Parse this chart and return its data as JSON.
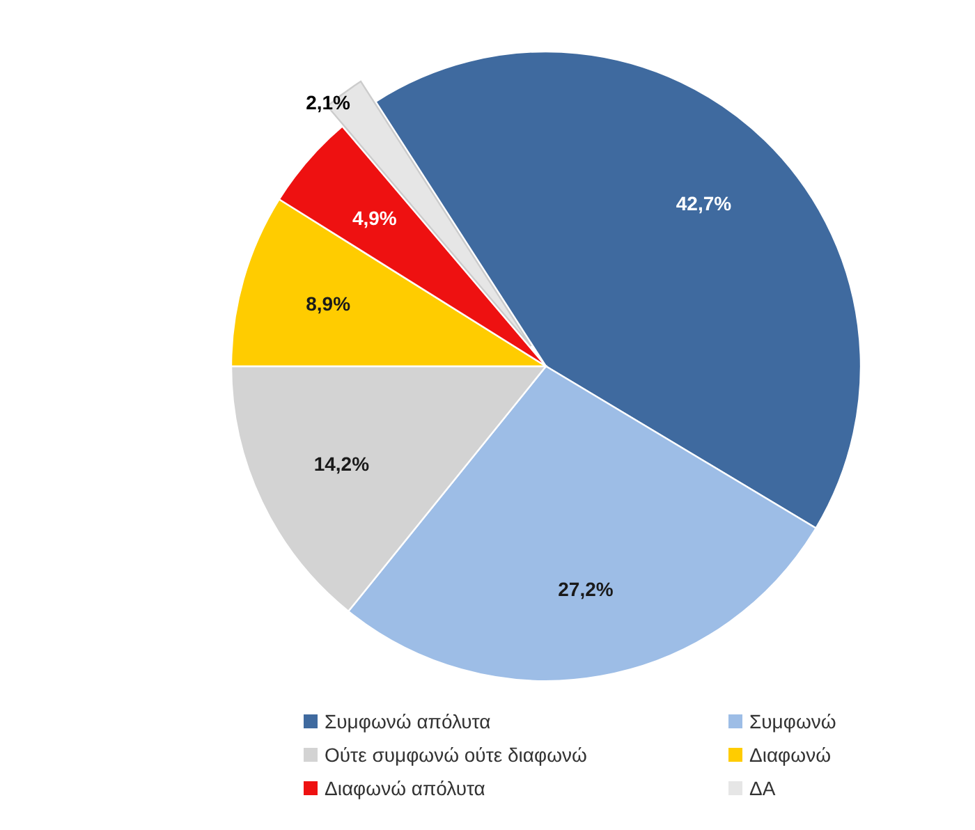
{
  "chart_data": {
    "type": "pie",
    "categories": [
      "Συμφωνώ απόλυτα",
      "Συμφωνώ",
      "Ούτε συμφωνώ ούτε διαφωνώ",
      "Διαφωνώ",
      "Διαφωνώ απόλυτα",
      "ΔΑ"
    ],
    "values": [
      42.7,
      27.2,
      14.2,
      8.9,
      4.9,
      2.1
    ],
    "colors": [
      "#3f6a9f",
      "#9dbde6",
      "#d3d3d3",
      "#ffcc00",
      "#ee1111",
      "#e6e6e6"
    ],
    "value_labels": [
      "42,7%",
      "27,2%",
      "14,2%",
      "8,9%",
      "4,9%",
      "2,1%"
    ],
    "legend": "bottom"
  }
}
